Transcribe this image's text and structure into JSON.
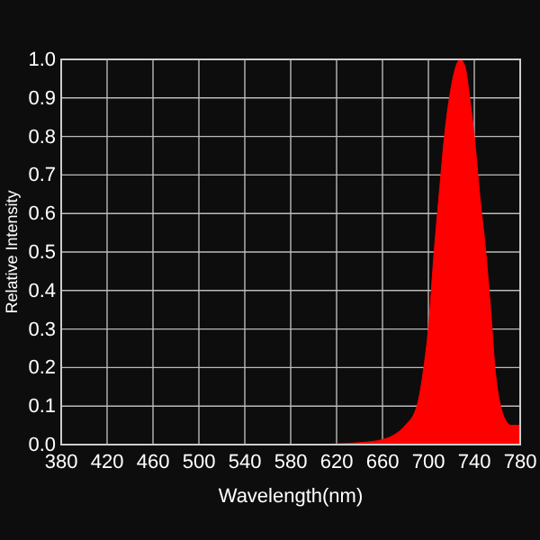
{
  "chart_data": {
    "type": "area",
    "xlabel": "Wavelength(nm)",
    "ylabel": "Relative Intensity",
    "x": [
      380,
      600,
      620,
      640,
      660,
      670,
      680,
      690,
      696,
      700,
      705,
      710,
      714,
      720,
      725,
      728,
      732,
      736,
      740,
      745,
      750,
      755,
      758,
      763,
      768,
      772,
      776,
      780
    ],
    "series": [
      {
        "color": "#ff0000",
        "values": [
          0,
          0,
          0.002,
          0.005,
          0.013,
          0.025,
          0.05,
          0.1,
          0.2,
          0.3,
          0.5,
          0.67,
          0.8,
          0.93,
          0.99,
          1.0,
          0.98,
          0.9,
          0.8,
          0.64,
          0.5,
          0.32,
          0.2,
          0.1,
          0.06,
          0.05,
          0.05,
          0.05
        ]
      }
    ],
    "xlim": [
      380,
      780
    ],
    "xticks": [
      380,
      420,
      460,
      500,
      540,
      580,
      620,
      660,
      700,
      740,
      780
    ],
    "ylim": [
      0,
      1
    ],
    "yticks": [
      {
        "value": 0,
        "label": "0.0"
      },
      {
        "value": 0.1,
        "label": "0.1"
      },
      {
        "value": 0.2,
        "label": "0.2"
      },
      {
        "value": 0.3,
        "label": "0.3"
      },
      {
        "value": 0.4,
        "label": "0.4"
      },
      {
        "value": 0.5,
        "label": "0.5"
      },
      {
        "value": 0.6,
        "label": "0.6"
      },
      {
        "value": 0.7,
        "label": "0.7"
      },
      {
        "value": 0.8,
        "label": "0.8"
      },
      {
        "value": 0.9,
        "label": "0.9"
      },
      {
        "value": 1,
        "label": "1.0"
      }
    ],
    "grid": true
  }
}
